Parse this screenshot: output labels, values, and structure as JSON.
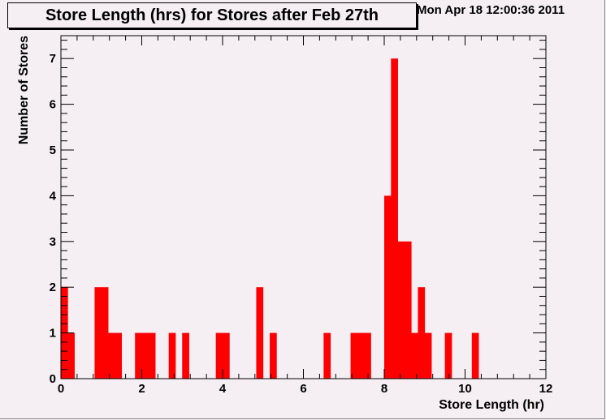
{
  "header": {
    "title": "Store Length (hrs) for Stores after Feb 27th",
    "timestamp": "Mon Apr 18 12:00:36 2011"
  },
  "chart_data": {
    "type": "bar",
    "title": "Store Length (hrs) for Stores after Feb 27th",
    "xlabel": "Store Length (hr)",
    "ylabel": "Number of Stores",
    "xlim": [
      0,
      12
    ],
    "ylim": [
      0,
      7.5
    ],
    "bin_width": 0.1667,
    "x_ticks": [
      0,
      2,
      4,
      6,
      8,
      10,
      12
    ],
    "y_ticks": [
      0,
      1,
      2,
      3,
      4,
      5,
      6,
      7
    ],
    "grid": false,
    "bar_color": "#ff0000",
    "bins": [
      {
        "x0": 0.0,
        "x1": 0.167,
        "value": 2
      },
      {
        "x0": 0.167,
        "x1": 0.333,
        "value": 1
      },
      {
        "x0": 0.833,
        "x1": 1.0,
        "value": 2
      },
      {
        "x0": 1.0,
        "x1": 1.167,
        "value": 2
      },
      {
        "x0": 1.167,
        "x1": 1.333,
        "value": 1
      },
      {
        "x0": 1.333,
        "x1": 1.5,
        "value": 1
      },
      {
        "x0": 1.833,
        "x1": 2.0,
        "value": 1
      },
      {
        "x0": 2.0,
        "x1": 2.167,
        "value": 1
      },
      {
        "x0": 2.167,
        "x1": 2.333,
        "value": 1
      },
      {
        "x0": 2.667,
        "x1": 2.833,
        "value": 1
      },
      {
        "x0": 3.0,
        "x1": 3.167,
        "value": 1
      },
      {
        "x0": 3.833,
        "x1": 4.0,
        "value": 1
      },
      {
        "x0": 4.0,
        "x1": 4.167,
        "value": 1
      },
      {
        "x0": 4.833,
        "x1": 5.0,
        "value": 2
      },
      {
        "x0": 5.167,
        "x1": 5.333,
        "value": 1
      },
      {
        "x0": 6.5,
        "x1": 6.667,
        "value": 1
      },
      {
        "x0": 7.167,
        "x1": 7.333,
        "value": 1
      },
      {
        "x0": 7.333,
        "x1": 7.5,
        "value": 1
      },
      {
        "x0": 7.5,
        "x1": 7.667,
        "value": 1
      },
      {
        "x0": 8.0,
        "x1": 8.167,
        "value": 4
      },
      {
        "x0": 8.167,
        "x1": 8.333,
        "value": 7
      },
      {
        "x0": 8.333,
        "x1": 8.5,
        "value": 3
      },
      {
        "x0": 8.5,
        "x1": 8.667,
        "value": 3
      },
      {
        "x0": 8.667,
        "x1": 8.833,
        "value": 1
      },
      {
        "x0": 8.833,
        "x1": 9.0,
        "value": 2
      },
      {
        "x0": 9.0,
        "x1": 9.167,
        "value": 1
      },
      {
        "x0": 9.5,
        "x1": 9.667,
        "value": 1
      },
      {
        "x0": 10.167,
        "x1": 10.333,
        "value": 1
      }
    ]
  }
}
